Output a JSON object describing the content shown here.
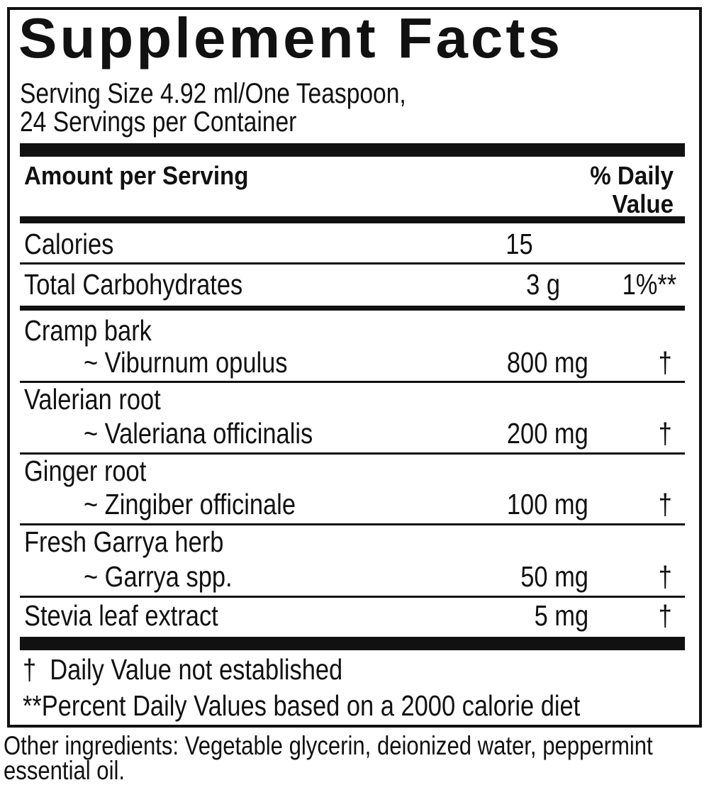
{
  "title": "Supplement Facts",
  "serving": {
    "size": "Serving Size 4.92 ml/One Teaspoon,",
    "per_container": "24 Servings per Container"
  },
  "header": {
    "amount": "Amount per Serving",
    "dv_line1": "% Daily",
    "dv_line2": "Value"
  },
  "calories": {
    "label": "Calories",
    "amount": "15"
  },
  "carbs": {
    "label": "Total Carbohydrates",
    "amount": "3 g",
    "dv": "1%**"
  },
  "ingredients": [
    {
      "name": "Cramp bark",
      "latin": "~ Viburnum opulus",
      "amount": "800 mg",
      "dv": "†"
    },
    {
      "name": "Valerian root",
      "latin": "~ Valeriana officinalis",
      "amount": "200 mg",
      "dv": "†"
    },
    {
      "name": "Ginger root",
      "latin": "~ Zingiber officinale",
      "amount": "100 mg",
      "dv": "†"
    },
    {
      "name": "Fresh Garrya herb",
      "latin": "~ Garrya spp.",
      "amount": "50 mg",
      "dv": "†"
    }
  ],
  "stevia": {
    "name": "Stevia leaf extract",
    "amount": "5 mg",
    "dv": "†"
  },
  "footnotes": {
    "dagger": "†  Daily Value not established",
    "percent": "**Percent Daily Values based on a 2000 calorie diet"
  },
  "other": {
    "line1": "Other ingredients: Vegetable glycerin, deionized water, peppermint",
    "line2": "essential oil."
  }
}
